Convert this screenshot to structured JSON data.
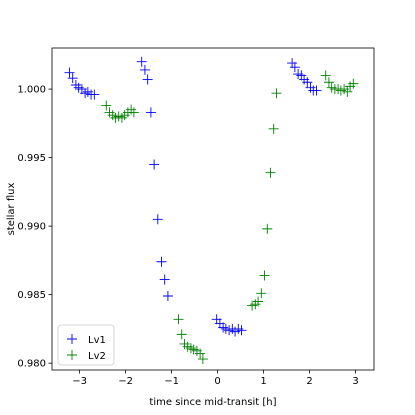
{
  "chart_data": {
    "type": "scatter",
    "xlabel": "time since mid-transit [h]",
    "ylabel": "stellar flux",
    "xlim": [
      -3.6,
      3.4
    ],
    "ylim": [
      0.9795,
      1.003
    ],
    "xticks": [
      {
        "value": -3,
        "label": "−3"
      },
      {
        "value": -2,
        "label": "−2"
      },
      {
        "value": -1,
        "label": "−1"
      },
      {
        "value": 0,
        "label": "0"
      },
      {
        "value": 1,
        "label": "1"
      },
      {
        "value": 2,
        "label": "2"
      },
      {
        "value": 3,
        "label": "3"
      }
    ],
    "yticks": [
      {
        "value": 0.98,
        "label": "0.980"
      },
      {
        "value": 0.985,
        "label": "0.985"
      },
      {
        "value": 0.99,
        "label": "0.990"
      },
      {
        "value": 0.995,
        "label": "0.995"
      },
      {
        "value": 1.0,
        "label": "1.000"
      }
    ],
    "grid": false,
    "legend_position": "lower-left",
    "marker": "plus",
    "series": [
      {
        "name": "Lv1",
        "color": "#0000ff",
        "points": [
          [
            -3.22,
            1.0012
          ],
          [
            -3.15,
            1.0008
          ],
          [
            -3.08,
            1.0003
          ],
          [
            -3.02,
            1.0001
          ],
          [
            -2.95,
            1.0
          ],
          [
            -2.88,
            0.9997
          ],
          [
            -2.82,
            0.9998
          ],
          [
            -2.75,
            0.9996
          ],
          [
            -2.68,
            0.9996
          ],
          [
            -1.65,
            1.002
          ],
          [
            -1.58,
            1.0014
          ],
          [
            -1.52,
            1.0007
          ],
          [
            -1.45,
            0.9983
          ],
          [
            -1.38,
            0.9945
          ],
          [
            -1.3,
            0.9905
          ],
          [
            -1.22,
            0.9874
          ],
          [
            -1.15,
            0.9861
          ],
          [
            -1.08,
            0.9849
          ],
          [
            -0.02,
            0.9832
          ],
          [
            0.05,
            0.9829
          ],
          [
            0.12,
            0.9826
          ],
          [
            0.18,
            0.9825
          ],
          [
            0.25,
            0.9824
          ],
          [
            0.32,
            0.9825
          ],
          [
            0.38,
            0.9823
          ],
          [
            0.45,
            0.9825
          ],
          [
            0.52,
            0.9824
          ],
          [
            1.62,
            1.0019
          ],
          [
            1.68,
            1.0016
          ],
          [
            1.75,
            1.0011
          ],
          [
            1.82,
            1.001
          ],
          [
            1.88,
            1.0007
          ],
          [
            1.95,
            1.0005
          ],
          [
            2.02,
            1.0001
          ],
          [
            2.08,
            0.9999
          ],
          [
            2.15,
            0.9999
          ]
        ]
      },
      {
        "name": "Lv2",
        "color": "#008000",
        "points": [
          [
            -2.42,
            0.9988
          ],
          [
            -2.35,
            0.9983
          ],
          [
            -2.28,
            0.9981
          ],
          [
            -2.22,
            0.9979
          ],
          [
            -2.15,
            0.998
          ],
          [
            -2.08,
            0.9979
          ],
          [
            -2.02,
            0.9981
          ],
          [
            -1.95,
            0.9983
          ],
          [
            -1.88,
            0.9985
          ],
          [
            -1.82,
            0.9983
          ],
          [
            -0.85,
            0.9832
          ],
          [
            -0.78,
            0.9821
          ],
          [
            -0.72,
            0.9814
          ],
          [
            -0.65,
            0.9812
          ],
          [
            -0.58,
            0.9811
          ],
          [
            -0.52,
            0.981
          ],
          [
            -0.45,
            0.9809
          ],
          [
            -0.38,
            0.9807
          ],
          [
            -0.32,
            0.9803
          ],
          [
            0.75,
            0.9842
          ],
          [
            0.82,
            0.9843
          ],
          [
            0.88,
            0.9845
          ],
          [
            0.95,
            0.9851
          ],
          [
            1.02,
            0.9864
          ],
          [
            1.08,
            0.9898
          ],
          [
            1.15,
            0.9939
          ],
          [
            1.22,
            0.9971
          ],
          [
            1.28,
            0.9997
          ],
          [
            2.35,
            1.001
          ],
          [
            2.42,
            1.0005
          ],
          [
            2.48,
            1.0001
          ],
          [
            2.55,
            1.0
          ],
          [
            2.62,
            1.0
          ],
          [
            2.68,
            0.9999
          ],
          [
            2.75,
            1.0
          ],
          [
            2.82,
            0.9998
          ],
          [
            2.88,
            1.0002
          ],
          [
            2.95,
            1.0004
          ]
        ]
      }
    ]
  }
}
